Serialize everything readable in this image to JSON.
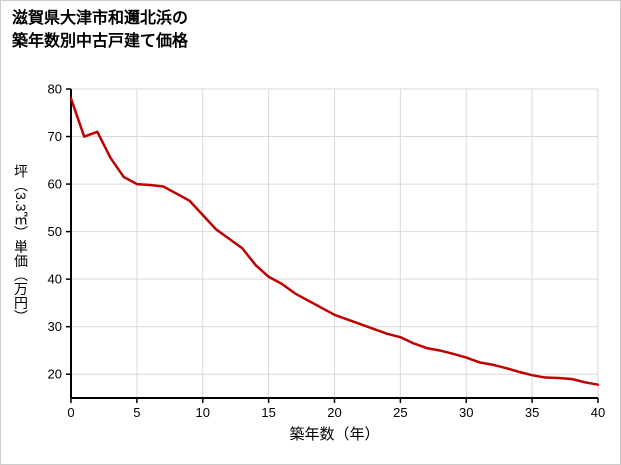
{
  "title": {
    "line1": "滋賀県大津市和邇北浜の",
    "line2": "築年数別中古戸建て価格"
  },
  "chart_data": {
    "type": "line",
    "title": "滋賀県大津市和邇北浜の築年数別中古戸建て価格",
    "xlabel": "築年数（年）",
    "ylabel": "坪（3.3㎡）単価（万円）",
    "x": [
      0,
      1,
      2,
      3,
      4,
      5,
      6,
      7,
      8,
      9,
      10,
      11,
      12,
      13,
      14,
      15,
      16,
      17,
      18,
      19,
      20,
      21,
      22,
      23,
      24,
      25,
      26,
      27,
      28,
      29,
      30,
      31,
      32,
      33,
      34,
      35,
      36,
      37,
      38,
      39,
      40
    ],
    "values": [
      78,
      70,
      71,
      65.5,
      61.5,
      60,
      59.8,
      59.5,
      58,
      56.5,
      53.5,
      50.5,
      48.5,
      46.5,
      43,
      40.5,
      39,
      37,
      35.5,
      34,
      32.5,
      31.5,
      30.5,
      29.5,
      28.5,
      27.8,
      26.5,
      25.5,
      25,
      24.3,
      23.5,
      22.5,
      22,
      21.3,
      20.5,
      19.8,
      19.3,
      19.2,
      19,
      18.3,
      17.8
    ],
    "xlim": [
      0,
      40
    ],
    "ylim": [
      15,
      80
    ],
    "xticks": [
      0,
      5,
      10,
      15,
      20,
      25,
      30,
      35,
      40
    ],
    "yticks": [
      20,
      30,
      40,
      50,
      60,
      70,
      80
    ],
    "grid": true,
    "legend": "none",
    "line_color": "#c00000",
    "grid_color": "#d9d9d9",
    "axis_color": "#000000"
  }
}
